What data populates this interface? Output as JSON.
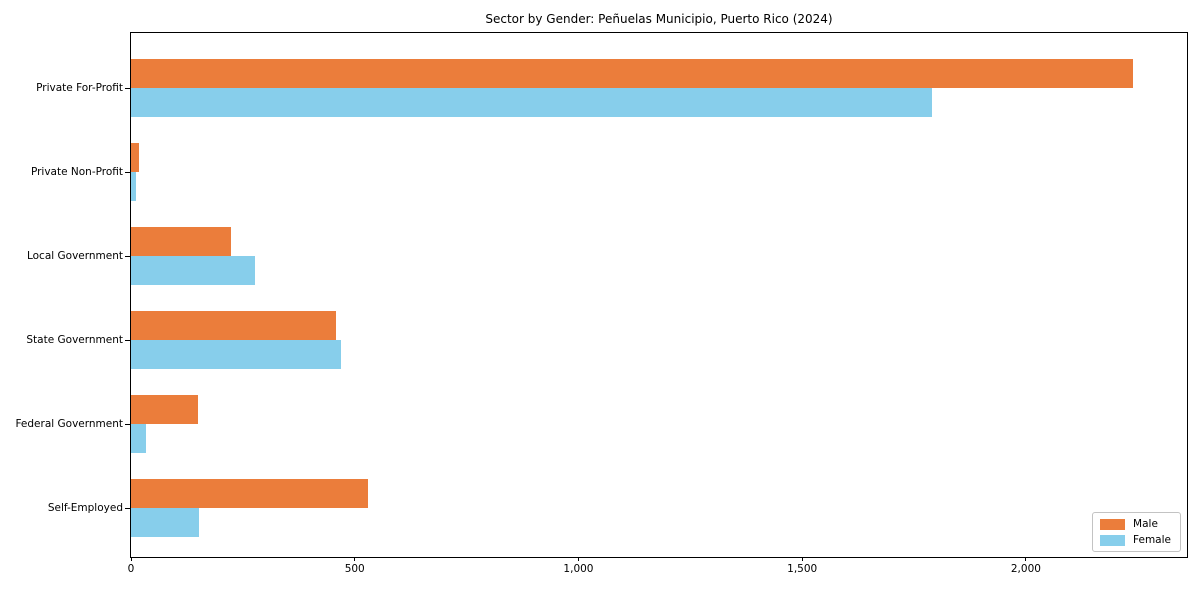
{
  "chart_data": {
    "type": "bar",
    "orientation": "horizontal",
    "title": "Sector by Gender: Peñuelas Municipio, Puerto Rico (2024)",
    "xlabel": "",
    "ylabel": "",
    "categories": [
      "Private For-Profit",
      "Private Non-Profit",
      "Local Government",
      "State Government",
      "Federal Government",
      "Self-Employed"
    ],
    "series": [
      {
        "name": "Male",
        "color": "#EB7D3B",
        "values": [
          2240,
          17,
          223,
          458,
          150,
          530
        ]
      },
      {
        "name": "Female",
        "color": "#87CEEB",
        "values": [
          1790,
          10,
          277,
          470,
          34,
          152
        ]
      }
    ],
    "xlim": [
      0,
      2360
    ],
    "x_ticks": [
      0,
      500,
      1000,
      1500,
      2000
    ],
    "x_tick_labels": [
      "0",
      "500",
      "1,000",
      "1,500",
      "2,000"
    ],
    "grid": false,
    "legend_position": "lower right"
  },
  "colors": {
    "male": "#EB7D3B",
    "female": "#87CEEB",
    "spine": "#000000",
    "background": "#ffffff",
    "legend_border": "#c3c3c3"
  }
}
